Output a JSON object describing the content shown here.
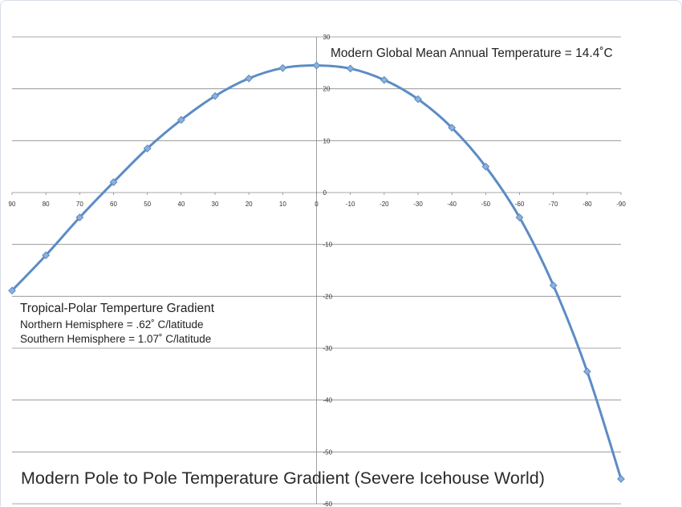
{
  "chart_data": {
    "type": "line",
    "title": "Modern Pole to Pole Temperature Gradient  (Severe Icehouse World)",
    "x": [
      90,
      80,
      70,
      60,
      50,
      40,
      30,
      20,
      10,
      0,
      -10,
      -20,
      -30,
      -40,
      -50,
      -60,
      -70,
      -80,
      -90
    ],
    "series": [
      {
        "values": [
          -18.9,
          -12.1,
          -4.8,
          2.0,
          8.5,
          14.0,
          18.6,
          22.0,
          24.0,
          24.5,
          23.9,
          21.7,
          18.0,
          12.5,
          5.0,
          -4.8,
          -17.9,
          -34.5,
          -55.2
        ]
      }
    ],
    "xlim": [
      90,
      -90
    ],
    "ylim": [
      -60,
      30
    ],
    "x_ticks": [
      "90",
      "80",
      "70",
      "60",
      "50",
      "40",
      "30",
      "20",
      "10",
      "0",
      "-10",
      "-20",
      "-30",
      "-40",
      "-50",
      "-60",
      "-70",
      "-80",
      "-90"
    ],
    "y_ticks": [
      "30",
      "20",
      "10",
      "0",
      "-10",
      "-20",
      "-30",
      "-40",
      "-50",
      "-60"
    ],
    "grid": true,
    "line_color": "#5b8cc5",
    "marker_color": "#8cb1dd",
    "annotations": {
      "top_note": "Modern Global Mean Annual Temperature = 14.4˚C",
      "gradient_title": "Tropical-Polar Temperture Gradient",
      "northern": "Northern Hemisphere = .62˚ C/latitude",
      "southern": "Southern Hemisphere = 1.07˚ C/latitude"
    }
  }
}
